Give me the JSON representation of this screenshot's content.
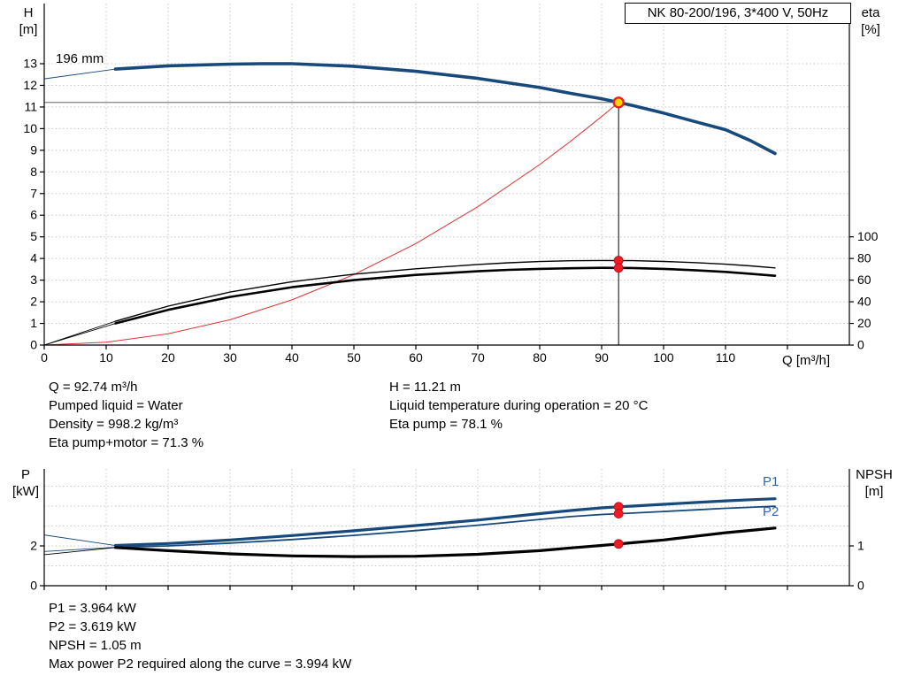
{
  "title_box": "NK 80-200/196, 3*400 V, 50Hz",
  "colors": {
    "blue": "#17497d",
    "label_blue": "#3465a4",
    "curve_black": "#000000",
    "red": "#ee1c25",
    "red_line": "#dd3333",
    "grid": "#c9c9c9",
    "guide_gray": "#808080",
    "op_fill": "#ffd500",
    "op_ring": "#ee1c25"
  },
  "labels": {
    "h_axis": "H",
    "h_unit": "[m]",
    "eta_axis": "eta",
    "eta_unit": "[%]",
    "q_axis": "Q [m³/h]",
    "p_axis": "P",
    "p_unit": "[kW]",
    "npsh_axis": "NPSH",
    "npsh_unit": "[m]"
  },
  "chart_data": [
    {
      "id": "qh",
      "type": "line",
      "title": "NK 80-200/196, 3*400 V, 50Hz",
      "xlabel": "Q [m³/h]",
      "ylabel_left": "H [m]",
      "ylabel_right": "eta [%]",
      "x_range": [
        0,
        130
      ],
      "y_left_range": [
        0,
        15.8
      ],
      "y_right_range": [
        0,
        100
      ],
      "curve_label": "196 mm",
      "x_tick_labels": [
        0,
        10,
        20,
        30,
        40,
        50,
        60,
        70,
        80,
        90,
        100,
        110
      ],
      "x_grid": [
        10,
        20,
        30,
        40,
        50,
        60,
        70,
        80,
        90,
        100,
        110,
        120
      ],
      "y_ticks_left": [
        0,
        1,
        2,
        3,
        4,
        5,
        6,
        7,
        8,
        9,
        10,
        11,
        12,
        13
      ],
      "y_ticks_right": [
        0,
        20,
        40,
        60,
        80,
        100
      ],
      "series": [
        {
          "name": "pump-curve",
          "label": "196 mm",
          "axis": "H",
          "color": "blue",
          "width": 3.6,
          "lead_from": [
            0,
            12.3
          ],
          "points": [
            [
              11.5,
              12.75
            ],
            [
              20,
              12.9
            ],
            [
              30,
              12.98
            ],
            [
              35,
              13.0
            ],
            [
              40,
              13.0
            ],
            [
              50,
              12.88
            ],
            [
              60,
              12.65
            ],
            [
              70,
              12.32
            ],
            [
              80,
              11.9
            ],
            [
              85,
              11.63
            ],
            [
              90,
              11.38
            ],
            [
              92.74,
              11.21
            ],
            [
              95,
              11.07
            ],
            [
              100,
              10.72
            ],
            [
              105,
              10.33
            ],
            [
              110,
              9.95
            ],
            [
              114,
              9.45
            ],
            [
              118,
              8.85
            ]
          ]
        },
        {
          "name": "system-curve",
          "axis": "H",
          "color": "red_line",
          "width": 1,
          "points": [
            [
              0,
              0
            ],
            [
              10,
              0.13
            ],
            [
              20,
              0.52
            ],
            [
              30,
              1.17
            ],
            [
              40,
              2.09
            ],
            [
              50,
              3.26
            ],
            [
              60,
              4.69
            ],
            [
              70,
              6.39
            ],
            [
              80,
              8.34
            ],
            [
              85,
              9.42
            ],
            [
              90,
              10.56
            ],
            [
              92.74,
              11.21
            ]
          ]
        },
        {
          "name": "eta-pump-curve",
          "axis": "eta",
          "color": "curve_black",
          "width": 1.4,
          "lead_from": [
            0,
            0
          ],
          "points": [
            [
              11.5,
              22
            ],
            [
              20,
              36
            ],
            [
              30,
              49
            ],
            [
              40,
              58.5
            ],
            [
              50,
              65.5
            ],
            [
              60,
              70.5
            ],
            [
              70,
              74.5
            ],
            [
              75,
              76
            ],
            [
              80,
              77.2
            ],
            [
              85,
              77.9
            ],
            [
              90,
              78.2
            ],
            [
              92.74,
              78.1
            ],
            [
              95,
              78.0
            ],
            [
              100,
              77.3
            ],
            [
              105,
              76.2
            ],
            [
              110,
              74.7
            ],
            [
              114,
              73.2
            ],
            [
              118,
              71.3
            ]
          ]
        },
        {
          "name": "eta-pump-motor-curve",
          "axis": "eta",
          "color": "curve_black",
          "width": 2.6,
          "lead_from": [
            0,
            0
          ],
          "points": [
            [
              11.5,
              20
            ],
            [
              20,
              32.5
            ],
            [
              30,
              44.5
            ],
            [
              40,
              53.5
            ],
            [
              50,
              60
            ],
            [
              60,
              64.8
            ],
            [
              70,
              68.2
            ],
            [
              75,
              69.5
            ],
            [
              80,
              70.4
            ],
            [
              85,
              71.0
            ],
            [
              90,
              71.4
            ],
            [
              92.74,
              71.3
            ],
            [
              95,
              71.2
            ],
            [
              100,
              70.4
            ],
            [
              105,
              69.2
            ],
            [
              110,
              67.6
            ],
            [
              114,
              65.9
            ],
            [
              118,
              64
            ]
          ]
        }
      ],
      "operating_point": {
        "q": 92.74,
        "h": 11.21
      },
      "dots": [
        {
          "q": 92.74,
          "axis": "eta",
          "v": 78.1
        },
        {
          "q": 92.74,
          "axis": "eta",
          "v": 71.3
        }
      ]
    },
    {
      "id": "power",
      "type": "line",
      "ylabel_left": "P [kW]",
      "ylabel_right": "NPSH [m]",
      "x_range": [
        0,
        130
      ],
      "y_left_range": [
        0,
        5.9
      ],
      "y_right_range": [
        0,
        2.95
      ],
      "x_grid": [
        10,
        20,
        30,
        40,
        50,
        60,
        70,
        80,
        90,
        100,
        110,
        120
      ],
      "y_grid_left": [
        1,
        2,
        3,
        4,
        5
      ],
      "y_ticks_left": [
        0,
        2
      ],
      "y_ticks_right": [
        0,
        1
      ],
      "series": [
        {
          "name": "p1-curve",
          "label": "P1",
          "axis": "P",
          "color": "blue",
          "width": 3.2,
          "lead_from": [
            0,
            2.55
          ],
          "points": [
            [
              11.5,
              2.02
            ],
            [
              20,
              2.12
            ],
            [
              30,
              2.3
            ],
            [
              40,
              2.52
            ],
            [
              50,
              2.76
            ],
            [
              60,
              3.02
            ],
            [
              70,
              3.3
            ],
            [
              80,
              3.62
            ],
            [
              85,
              3.78
            ],
            [
              90,
              3.91
            ],
            [
              92.74,
              3.964
            ],
            [
              95,
              4.0
            ],
            [
              100,
              4.09
            ],
            [
              105,
              4.18
            ],
            [
              110,
              4.26
            ],
            [
              114,
              4.32
            ],
            [
              118,
              4.37
            ]
          ]
        },
        {
          "name": "p2-curve",
          "label": "P2",
          "axis": "P",
          "color": "blue",
          "width": 1.8,
          "lead_from": [
            0,
            1.72
          ],
          "points": [
            [
              11.5,
              1.93
            ],
            [
              20,
              2.0
            ],
            [
              30,
              2.14
            ],
            [
              40,
              2.32
            ],
            [
              50,
              2.53
            ],
            [
              60,
              2.77
            ],
            [
              70,
              3.04
            ],
            [
              80,
              3.33
            ],
            [
              85,
              3.47
            ],
            [
              90,
              3.58
            ],
            [
              92.74,
              3.619
            ],
            [
              95,
              3.65
            ],
            [
              100,
              3.73
            ],
            [
              105,
              3.81
            ],
            [
              110,
              3.89
            ],
            [
              114,
              3.94
            ],
            [
              118,
              3.99
            ]
          ]
        },
        {
          "name": "npsh-curve",
          "axis": "NPSH",
          "color": "curve_black",
          "width": 3.2,
          "lead_from": [
            0,
            0.78
          ],
          "points": [
            [
              11.5,
              0.96
            ],
            [
              20,
              0.88
            ],
            [
              30,
              0.8
            ],
            [
              40,
              0.75
            ],
            [
              50,
              0.73
            ],
            [
              60,
              0.74
            ],
            [
              70,
              0.79
            ],
            [
              80,
              0.88
            ],
            [
              85,
              0.95
            ],
            [
              90,
              1.01
            ],
            [
              92.74,
              1.05
            ],
            [
              95,
              1.08
            ],
            [
              100,
              1.15
            ],
            [
              105,
              1.24
            ],
            [
              110,
              1.33
            ],
            [
              114,
              1.39
            ],
            [
              118,
              1.45
            ]
          ]
        }
      ],
      "dots": [
        {
          "q": 92.74,
          "axis": "P",
          "v": 3.964
        },
        {
          "q": 92.74,
          "axis": "P",
          "v": 3.619
        },
        {
          "q": 92.74,
          "axis": "NPSH",
          "v": 1.05
        }
      ]
    }
  ],
  "results_top": {
    "left": [
      "Q = 92.74 m³/h",
      "Pumped liquid = Water",
      "Density = 998.2 kg/m³",
      "Eta pump+motor = 71.3 %"
    ],
    "right": [
      "H = 11.21 m",
      "Liquid temperature during operation = 20 °C",
      "Eta pump = 78.1 %"
    ]
  },
  "results_bottom": [
    "P1 = 3.964 kW",
    "P2 = 3.619 kW",
    "NPSH = 1.05 m",
    "Max power P2 required along the curve = 3.994 kW"
  ]
}
